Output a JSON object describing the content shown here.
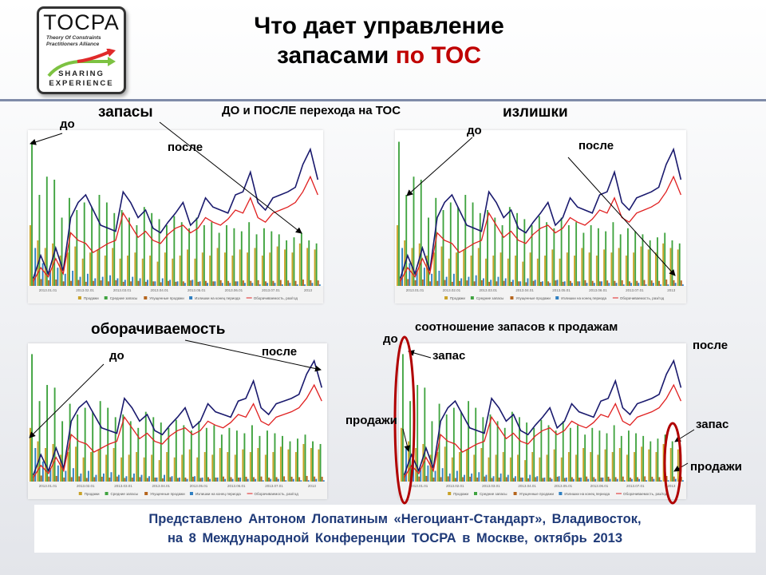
{
  "logo": {
    "name": "TOCPA",
    "subtitle_line1": "Theory Of Constraints",
    "subtitle_line2": "Practitioners Alliance",
    "tag1": "SHARING",
    "tag2": "EXPERIENCE"
  },
  "title": {
    "line1": "Что дает управление",
    "line2_a": "запасами",
    "line2_b": "по ТОС"
  },
  "annotations": {
    "stock": "запасы",
    "before_after": "ДО и ПОСЛЕ перехода на ТОС",
    "surplus": "излишки",
    "turnover": "оборачиваемость",
    "ratio": "соотношение запасов к продажам",
    "before": "до",
    "after": "после",
    "stock_short": "запас",
    "sales": "продажи"
  },
  "legend": [
    "Продажи",
    "Средние запасы",
    "Упущенные продажи",
    "Излишки на конец периода",
    "Оборачиваемость, раз/год"
  ],
  "x_ticks": [
    "2013.01.01",
    "2013.02.01",
    "2013.03.01",
    "2013.04.01",
    "2013.05.01",
    "2013.06.01",
    "2013.07.01",
    "2013"
  ],
  "colors": {
    "sales": "#c9a227",
    "stock": "#3fa33f",
    "lost": "#b5651d",
    "surplus": "#2f7fc1",
    "turnover": "#e02020",
    "ratio": "#1a1a6e"
  },
  "chart_series": {
    "stock": [
      95,
      60,
      72,
      70,
      45,
      58,
      50,
      55,
      52,
      60,
      55,
      48,
      50,
      45,
      40,
      52,
      48,
      44,
      40,
      46,
      42,
      38,
      45,
      40,
      42,
      35,
      40,
      38,
      36,
      42,
      34,
      38,
      36,
      34,
      30,
      32,
      35,
      30,
      28
    ],
    "sales": [
      40,
      30,
      25,
      28,
      20,
      22,
      26,
      18,
      22,
      24,
      20,
      25,
      18,
      20,
      22,
      18,
      20,
      16,
      22,
      18,
      20,
      24,
      18,
      22,
      20,
      25,
      22,
      20,
      24,
      22,
      25,
      20,
      22,
      26,
      24,
      22,
      28,
      25,
      24
    ],
    "surplus": [
      25,
      15,
      10,
      12,
      8,
      10,
      6,
      8,
      5,
      6,
      7,
      5,
      4,
      6,
      5,
      4,
      3,
      5,
      4,
      3,
      2,
      4,
      3,
      2,
      3,
      2,
      2,
      3,
      2,
      2,
      1,
      2,
      2,
      1,
      2,
      1,
      1,
      2,
      1
    ],
    "ratio": [
      5,
      20,
      8,
      25,
      10,
      45,
      55,
      60,
      50,
      40,
      38,
      36,
      62,
      55,
      45,
      50,
      38,
      35,
      42,
      48,
      55,
      40,
      45,
      58,
      52,
      50,
      48,
      60,
      62,
      75,
      55,
      50,
      58,
      60,
      62,
      65,
      80,
      90,
      70
    ],
    "turnover": [
      3,
      12,
      6,
      18,
      8,
      35,
      30,
      28,
      22,
      25,
      28,
      30,
      48,
      40,
      32,
      36,
      30,
      28,
      34,
      38,
      40,
      35,
      38,
      45,
      42,
      40,
      44,
      50,
      48,
      58,
      45,
      42,
      48,
      50,
      52,
      55,
      62,
      72,
      60
    ]
  }
}
